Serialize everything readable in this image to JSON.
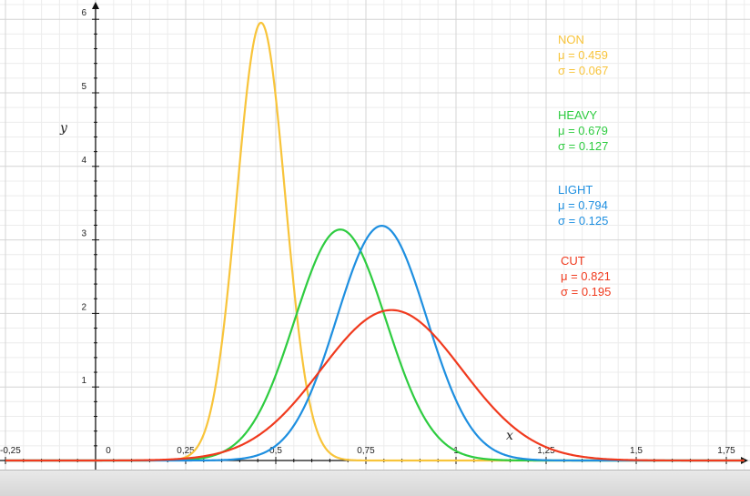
{
  "chart_data": {
    "type": "line",
    "title": "",
    "xlabel": "x",
    "ylabel": "y",
    "xlim": [
      -0.25,
      1.8
    ],
    "ylim": [
      -0.1,
      6.2
    ],
    "grid": true,
    "legend_position": "right",
    "x_ticks": [
      {
        "value": -0.25,
        "label": "-0,25"
      },
      {
        "value": 0,
        "label": "0"
      },
      {
        "value": 0.25,
        "label": "0,25"
      },
      {
        "value": 0.5,
        "label": "0,5"
      },
      {
        "value": 0.75,
        "label": "0,75"
      },
      {
        "value": 1,
        "label": "1"
      },
      {
        "value": 1.25,
        "label": "1,25"
      },
      {
        "value": 1.5,
        "label": "1,5"
      },
      {
        "value": 1.75,
        "label": "1,75"
      }
    ],
    "y_ticks": [
      {
        "value": 1,
        "label": "1"
      },
      {
        "value": 2,
        "label": "2"
      },
      {
        "value": 3,
        "label": "3"
      },
      {
        "value": 4,
        "label": "4"
      },
      {
        "value": 5,
        "label": "5"
      },
      {
        "value": 6,
        "label": "6"
      }
    ],
    "series": [
      {
        "name": "NON",
        "mu": 0.459,
        "sigma": 0.067,
        "mu_label": "μ = 0.459",
        "sigma_label": "σ = 0.067",
        "color": "#f8c43a"
      },
      {
        "name": "HEAVY",
        "mu": 0.679,
        "sigma": 0.127,
        "mu_label": "μ = 0.679",
        "sigma_label": "σ = 0.127",
        "color": "#2ecc40"
      },
      {
        "name": "LIGHT",
        "mu": 0.794,
        "sigma": 0.125,
        "mu_label": "μ = 0.794",
        "sigma_label": "σ = 0.125",
        "color": "#1e8fe0"
      },
      {
        "name": "CUT",
        "mu": 0.821,
        "sigma": 0.195,
        "mu_label": "μ = 0.821",
        "sigma_label": "σ = 0.195",
        "color": "#f03a1e"
      }
    ]
  }
}
